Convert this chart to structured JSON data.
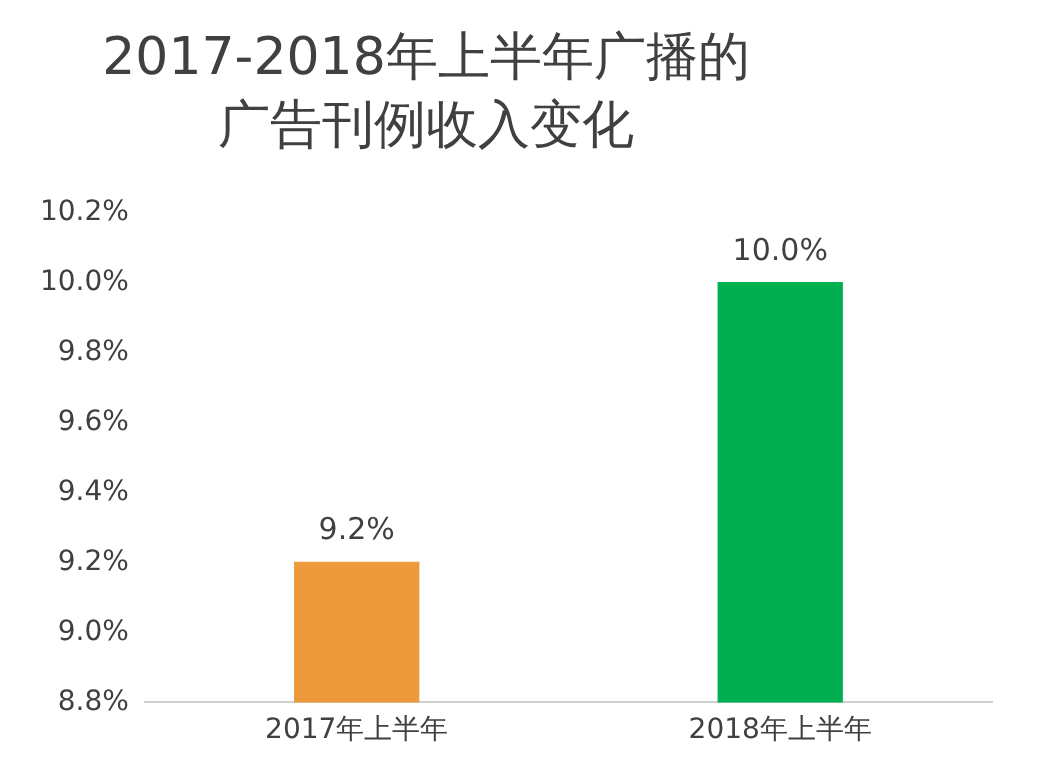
{
  "chart_data": {
    "type": "bar",
    "title": "2017-2018年上半年广播的广告刊例收入变化",
    "categories": [
      "2017年上半年",
      "2018年上半年"
    ],
    "values": [
      9.2,
      10.0
    ],
    "colors": [
      "#ed9a3c",
      "#00b050"
    ],
    "value_labels": [
      "9.2%",
      "10.0%"
    ],
    "ylim": [
      8.8,
      10.2
    ],
    "yticks": [
      {
        "value": 8.8,
        "label": "8.8%"
      },
      {
        "value": 9.0,
        "label": "9.0%"
      },
      {
        "value": 9.2,
        "label": "9.2%"
      },
      {
        "value": 9.4,
        "label": "9.4%"
      },
      {
        "value": 9.6,
        "label": "9.6%"
      },
      {
        "value": 9.8,
        "label": "9.8%"
      },
      {
        "value": 10.0,
        "label": "10.0%"
      },
      {
        "value": 10.2,
        "label": "10.2%"
      }
    ],
    "grid": false,
    "legend": false
  }
}
